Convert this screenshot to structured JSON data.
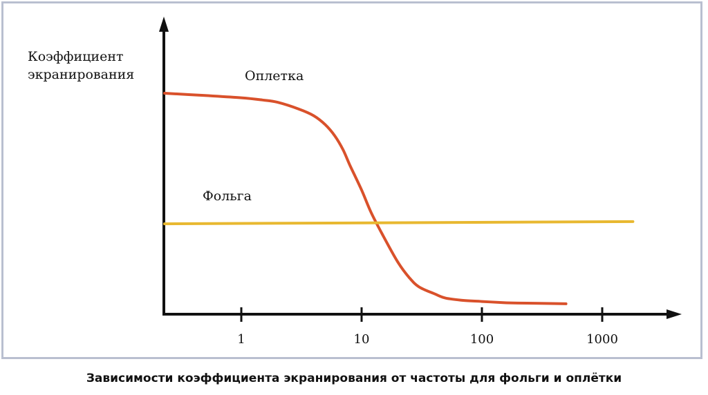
{
  "chart_data": {
    "type": "line",
    "title": "",
    "xlabel": "",
    "ylabel": [
      "Коэффициент",
      "экранирования"
    ],
    "x_scale": "log",
    "x_ticks": [
      1,
      10,
      100,
      1000
    ],
    "x_tick_labels": [
      "1",
      "10",
      "100",
      "1000"
    ],
    "xlim": [
      0.22,
      1000
    ],
    "ylim": [
      0,
      1
    ],
    "grid": false,
    "series": [
      {
        "name": "Оплетка",
        "color": "#d9512b",
        "x": [
          0.23,
          0.5,
          1,
          1.5,
          2,
          3,
          4,
          5,
          6,
          7,
          8,
          10,
          12,
          15,
          20,
          25,
          30,
          40,
          50,
          70,
          100,
          150,
          200,
          300,
          500
        ],
        "y": [
          0.96,
          0.95,
          0.94,
          0.93,
          0.92,
          0.89,
          0.86,
          0.82,
          0.77,
          0.71,
          0.64,
          0.53,
          0.43,
          0.33,
          0.21,
          0.14,
          0.1,
          0.07,
          0.05,
          0.04,
          0.035,
          0.03,
          0.028,
          0.027,
          0.025
        ]
      },
      {
        "name": "Фольга",
        "color": "#e8b830",
        "x": [
          0.23,
          1800
        ],
        "y": [
          0.38,
          0.39
        ]
      }
    ]
  },
  "caption": "Зависимости коэффициента экранирования от частоты для фольги и оплётки"
}
